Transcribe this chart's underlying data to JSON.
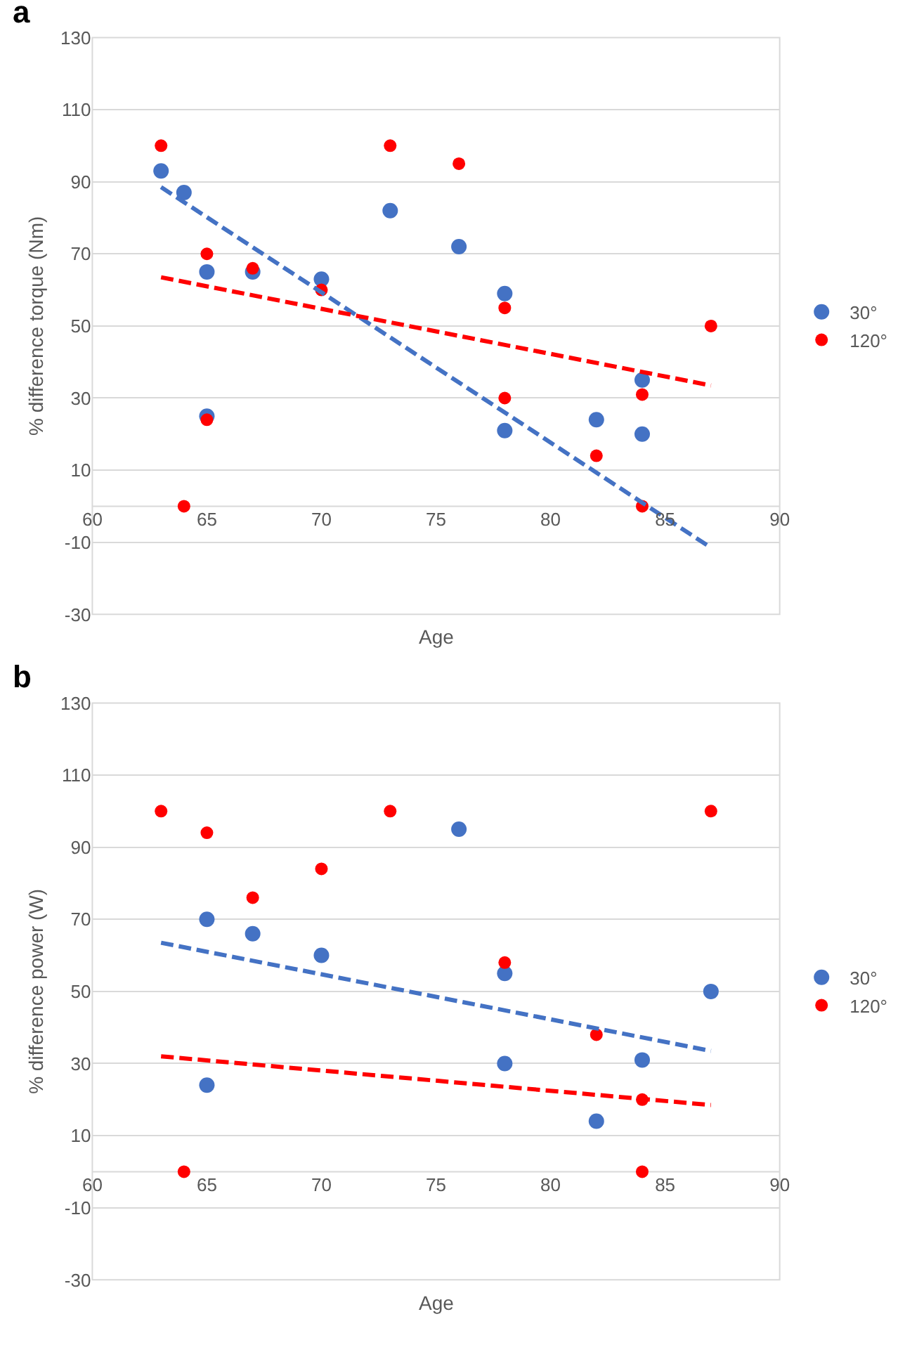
{
  "chart_data": [
    {
      "type": "scatter",
      "title": "a",
      "xlabel": "Age",
      "ylabel": "% difference torque (Nm)",
      "xlim": [
        60,
        90
      ],
      "xticks": [
        60,
        65,
        70,
        75,
        80,
        85,
        90
      ],
      "ylim": [
        -30,
        130
      ],
      "yticks": [
        -30,
        -10,
        10,
        30,
        50,
        70,
        90,
        110,
        130
      ],
      "grid": "y",
      "legend": "right",
      "marker": "circle",
      "ref_lines": [
        {
          "axis": "y",
          "value": 0,
          "label": null,
          "color": "#d9d9d9"
        }
      ],
      "series": [
        {
          "name": "30°",
          "color": "#4472c4",
          "x": [
            63,
            64,
            65,
            65,
            67,
            70,
            73,
            76,
            78,
            78,
            82,
            84,
            84
          ],
          "values": [
            93,
            87,
            65,
            25,
            65,
            63,
            82,
            72,
            59,
            21,
            24,
            35,
            20
          ]
        },
        {
          "name": "120°",
          "color": "#ff0000",
          "x": [
            63,
            64,
            65,
            65,
            67,
            70,
            73,
            76,
            78,
            78,
            82,
            84,
            84,
            87
          ],
          "values": [
            100,
            0,
            70,
            24,
            66,
            60,
            100,
            95,
            55,
            30,
            14,
            31,
            0,
            50
          ]
        },
        {
          "type": "line",
          "color": "#4472c4",
          "line_style": "dashed",
          "marker": "none",
          "x": [
            63,
            87
          ],
          "values": [
            88.5,
            -11.5
          ]
        },
        {
          "type": "line",
          "color": "#ff0000",
          "line_style": "dashed",
          "marker": "none",
          "x": [
            63,
            87
          ],
          "values": [
            63.5,
            33.5
          ]
        }
      ]
    },
    {
      "type": "scatter",
      "title": "b",
      "xlabel": "Age",
      "ylabel": "% difference power (W)",
      "xlim": [
        60,
        90
      ],
      "xticks": [
        60,
        65,
        70,
        75,
        80,
        85,
        90
      ],
      "ylim": [
        -30,
        130
      ],
      "yticks": [
        -30,
        -10,
        10,
        30,
        50,
        70,
        90,
        110,
        130
      ],
      "grid": "y",
      "legend": "right",
      "marker": "circle",
      "ref_lines": [
        {
          "axis": "y",
          "value": 0,
          "label": null,
          "color": "#d9d9d9"
        }
      ],
      "series": [
        {
          "name": "30°",
          "color": "#4472c4",
          "x": [
            65,
            65,
            67,
            70,
            76,
            78,
            78,
            82,
            84,
            87
          ],
          "values": [
            70,
            24,
            66,
            60,
            95,
            55,
            30,
            14,
            31,
            50
          ]
        },
        {
          "name": "120°",
          "color": "#ff0000",
          "x": [
            63,
            64,
            65,
            67,
            70,
            73,
            78,
            82,
            84,
            84,
            87
          ],
          "values": [
            100,
            0,
            94,
            76,
            84,
            100,
            58,
            38,
            20,
            0,
            100
          ]
        },
        {
          "type": "line",
          "color": "#4472c4",
          "line_style": "dashed",
          "marker": "none",
          "x": [
            63,
            87
          ],
          "values": [
            63.5,
            33.5
          ]
        },
        {
          "type": "line",
          "color": "#ff0000",
          "line_style": "dashed",
          "marker": "none",
          "x": [
            63,
            87
          ],
          "values": [
            32,
            18.5
          ]
        }
      ]
    }
  ]
}
